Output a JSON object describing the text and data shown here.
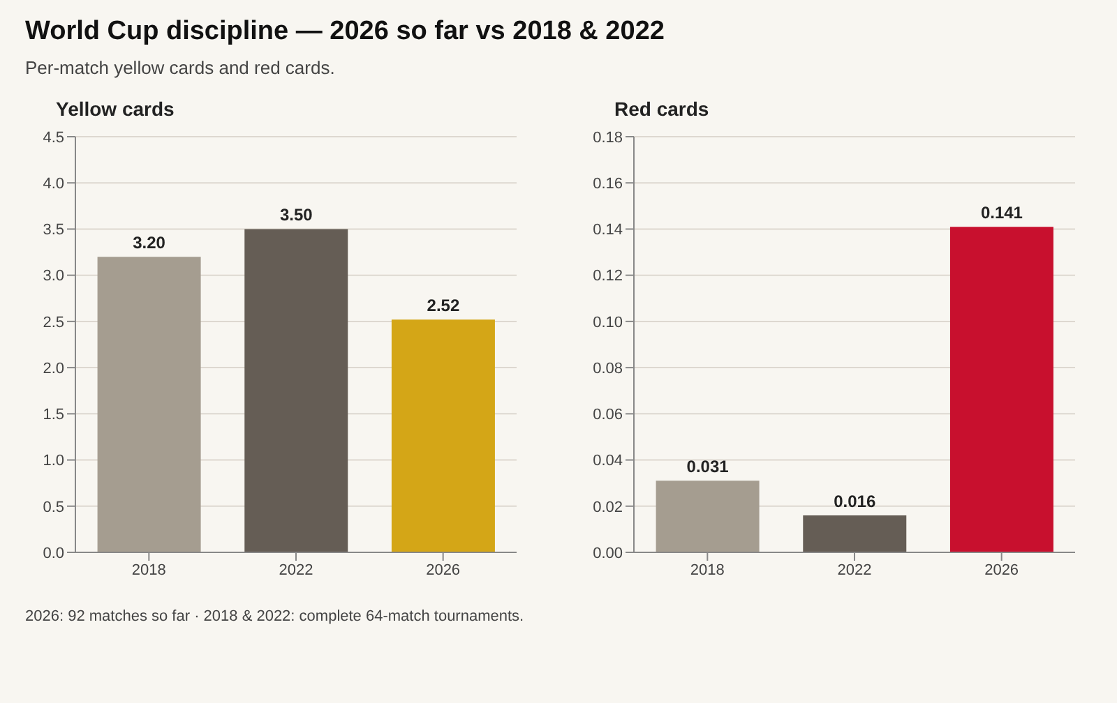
{
  "chart_data": [
    {
      "type": "other",
      "title": "World Cup discipline — 2026 so far vs 2018 & 2022",
      "subtitle": "Per-match yellow cards and red cards.",
      "annotations": [
        "2026: 92 matches so far · 2018 & 2022: complete 64-match tournaments."
      ]
    },
    {
      "type": "bar",
      "title": "Yellow cards",
      "categories": [
        "2018",
        "2022",
        "2026"
      ],
      "values": [
        3.2,
        3.5,
        2.52
      ],
      "colors": [
        "#a59d90",
        "#655d55",
        "#d4a617"
      ],
      "value_labels": [
        "3.20",
        "3.50",
        "2.52"
      ],
      "ylim": [
        0,
        4.5
      ],
      "yticks": [
        {
          "value": 0,
          "label": "0.0"
        },
        {
          "value": 0.5,
          "label": "0.5"
        },
        {
          "value": 1,
          "label": "1.0"
        },
        {
          "value": 1.5,
          "label": "1.5"
        },
        {
          "value": 2,
          "label": "2.0"
        },
        {
          "value": 2.5,
          "label": "2.5"
        },
        {
          "value": 3,
          "label": "3.0"
        },
        {
          "value": 3.5,
          "label": "3.5"
        },
        {
          "value": 4,
          "label": "4.0"
        },
        {
          "value": 4.5,
          "label": "4.5"
        }
      ],
      "grid": "y"
    },
    {
      "type": "bar",
      "title": "Red cards",
      "categories": [
        "2018",
        "2022",
        "2026"
      ],
      "values": [
        0.031,
        0.016,
        0.141
      ],
      "colors": [
        "#a59d90",
        "#655d55",
        "#c8102e"
      ],
      "data_labels": true,
      "ylim": [
        0,
        0.18
      ],
      "yticks": [
        {
          "value": 0,
          "label": "0.00"
        },
        {
          "value": 0.02,
          "label": "0.02"
        },
        {
          "value": 0.04,
          "label": "0.04"
        },
        {
          "value": 0.06,
          "label": "0.06"
        },
        {
          "value": 0.08,
          "label": "0.08"
        },
        {
          "value": 0.1,
          "label": "0.10"
        },
        {
          "value": 0.12,
          "label": "0.12"
        },
        {
          "value": 0.14,
          "label": "0.14"
        },
        {
          "value": 0.16,
          "label": "0.16"
        },
        {
          "value": 0.18,
          "label": "0.18"
        }
      ],
      "grid": "y"
    }
  ]
}
